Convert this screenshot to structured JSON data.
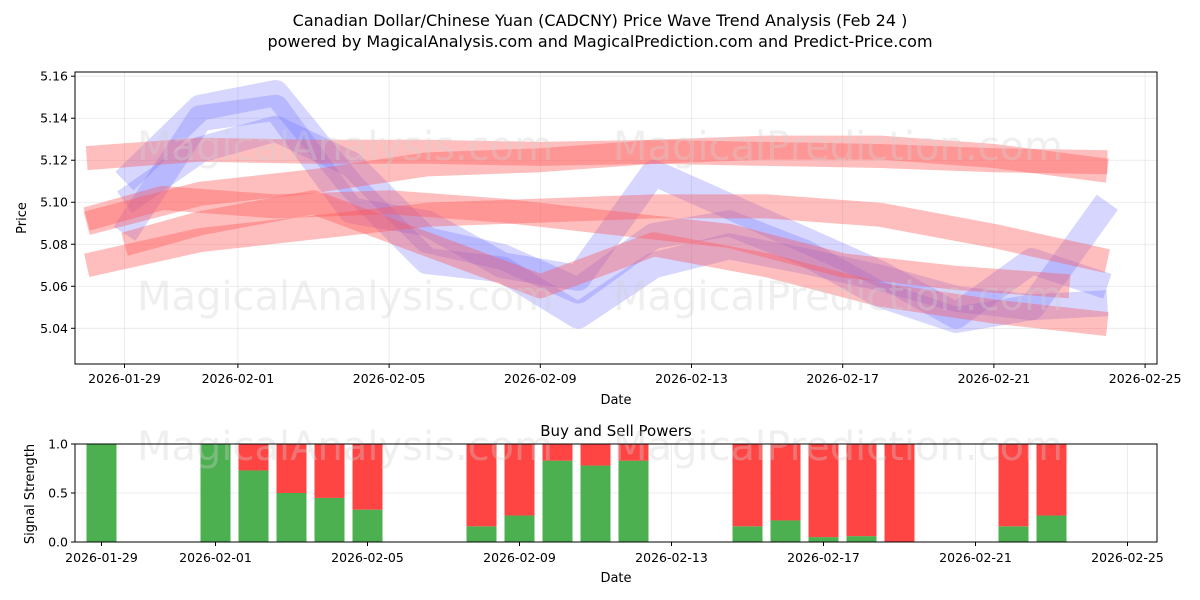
{
  "header": {
    "title_line1": "Canadian Dollar/Chinese Yuan (CADCNY) Price Wave Trend Analysis (Feb 24 )",
    "title_line2": "powered by MagicalAnalysis.com and MagicalPrediction.com and Predict-Price.com"
  },
  "watermarks": {
    "analysis": "MagicalAnalysis.com",
    "prediction": "MagicalPrediction.com"
  },
  "colors": {
    "blue_band": "#6a6aff",
    "red_band": "#ff5555",
    "buy": "#4caf50",
    "sell": "#ff4444"
  },
  "chart_data": [
    {
      "type": "line",
      "title": "",
      "xlabel": "Date",
      "ylabel": "Price",
      "grid": true,
      "x_ticks": [
        "2026-01-29",
        "2026-02-01",
        "2026-02-05",
        "2026-02-09",
        "2026-02-13",
        "2026-02-17",
        "2026-02-21",
        "2026-02-25"
      ],
      "y_ticks": [
        "5.04",
        "5.06",
        "5.08",
        "5.10",
        "5.12",
        "5.14",
        "5.16"
      ],
      "xlim": [
        "2026-01-27.8",
        "2026-02-25.0"
      ],
      "ylim": [
        5.023,
        5.162
      ],
      "series": [
        {
          "name": "blue-wave-1",
          "color": "blue",
          "x": [
            "2026-01-29",
            "2026-01-31",
            "2026-02-02",
            "2026-02-04",
            "2026-02-06",
            "2026-02-08",
            "2026-02-10",
            "2026-02-12",
            "2026-02-14",
            "2026-02-16",
            "2026-02-18",
            "2026-02-20",
            "2026-02-22",
            "2026-02-24"
          ],
          "y": [
            5.11,
            5.145,
            5.152,
            5.108,
            5.072,
            5.068,
            5.046,
            5.07,
            5.079,
            5.072,
            5.064,
            5.054,
            5.05,
            5.052
          ]
        },
        {
          "name": "blue-wave-2",
          "color": "blue",
          "x": [
            "2026-01-29",
            "2026-01-31",
            "2026-02-02",
            "2026-02-04",
            "2026-02-06",
            "2026-02-08",
            "2026-02-10",
            "2026-02-12",
            "2026-02-14",
            "2026-02-16",
            "2026-02-18",
            "2026-02-20",
            "2026-02-22",
            "2026-02-24"
          ],
          "y": [
            5.085,
            5.14,
            5.145,
            5.096,
            5.09,
            5.07,
            5.064,
            5.114,
            5.098,
            5.082,
            5.066,
            5.046,
            5.072,
            5.06
          ]
        },
        {
          "name": "blue-wave-3",
          "color": "blue",
          "x": [
            "2026-01-29",
            "2026-01-31",
            "2026-02-02",
            "2026-02-04",
            "2026-02-06",
            "2026-02-08",
            "2026-02-10",
            "2026-02-12",
            "2026-02-14",
            "2026-02-16",
            "2026-02-18",
            "2026-02-20",
            "2026-02-22",
            "2026-02-24"
          ],
          "y": [
            5.1,
            5.125,
            5.135,
            5.118,
            5.082,
            5.074,
            5.058,
            5.084,
            5.09,
            5.076,
            5.056,
            5.044,
            5.05,
            5.1
          ]
        },
        {
          "name": "red-wave-1",
          "color": "red",
          "x": [
            "2026-01-28",
            "2026-01-31",
            "2026-02-03",
            "2026-02-06",
            "2026-02-09",
            "2026-02-12",
            "2026-02-15",
            "2026-02-18",
            "2026-02-21",
            "2026-02-24"
          ],
          "y": [
            5.121,
            5.125,
            5.124,
            5.124,
            5.123,
            5.124,
            5.123,
            5.122,
            5.12,
            5.119
          ]
        },
        {
          "name": "red-wave-2",
          "color": "red",
          "x": [
            "2026-01-28",
            "2026-01-31",
            "2026-02-03",
            "2026-02-06",
            "2026-02-09",
            "2026-02-12",
            "2026-02-15",
            "2026-02-18",
            "2026-02-21",
            "2026-02-24"
          ],
          "y": [
            5.09,
            5.104,
            5.11,
            5.118,
            5.12,
            5.124,
            5.126,
            5.126,
            5.122,
            5.115
          ]
        },
        {
          "name": "red-wave-3",
          "color": "red",
          "x": [
            "2026-01-28",
            "2026-01-31",
            "2026-02-03",
            "2026-02-06",
            "2026-02-09",
            "2026-02-12",
            "2026-02-15",
            "2026-02-18",
            "2026-02-21",
            "2026-02-24"
          ],
          "y": [
            5.07,
            5.082,
            5.088,
            5.094,
            5.096,
            5.098,
            5.098,
            5.094,
            5.084,
            5.072
          ]
        },
        {
          "name": "red-wave-4",
          "color": "red",
          "x": [
            "2026-01-28",
            "2026-01-30",
            "2026-02-02",
            "2026-02-05",
            "2026-02-08",
            "2026-02-11",
            "2026-02-14",
            "2026-02-17",
            "2026-02-20",
            "2026-02-23"
          ],
          "y": [
            5.092,
            5.102,
            5.098,
            5.1,
            5.096,
            5.09,
            5.084,
            5.07,
            5.064,
            5.06
          ]
        },
        {
          "name": "red-wave-5",
          "color": "red",
          "x": [
            "2026-01-29",
            "2026-01-31",
            "2026-02-03",
            "2026-02-06",
            "2026-02-09",
            "2026-02-12",
            "2026-02-15",
            "2026-02-18",
            "2026-02-21",
            "2026-02-24"
          ],
          "y": [
            5.08,
            5.09,
            5.1,
            5.08,
            5.06,
            5.08,
            5.07,
            5.056,
            5.048,
            5.042
          ]
        }
      ]
    },
    {
      "type": "bar",
      "title": "Buy and Sell Powers",
      "xlabel": "Date",
      "ylabel": "Signal Strength",
      "grid": true,
      "x_ticks": [
        "2026-01-29",
        "2026-02-01",
        "2026-02-05",
        "2026-02-09",
        "2026-02-13",
        "2026-02-17",
        "2026-02-21",
        "2026-02-25"
      ],
      "y_ticks": [
        "0.0",
        "0.5",
        "1.0"
      ],
      "ylim": [
        0,
        1
      ],
      "categories": [
        "2026-01-29",
        "2026-02-01",
        "2026-02-02",
        "2026-02-03",
        "2026-02-04",
        "2026-02-05",
        "2026-02-08",
        "2026-02-09",
        "2026-02-10",
        "2026-02-11",
        "2026-02-12",
        "2026-02-15",
        "2026-02-16",
        "2026-02-17",
        "2026-02-18",
        "2026-02-19",
        "2026-02-22",
        "2026-02-23"
      ],
      "series": [
        {
          "name": "buy",
          "values": [
            1.0,
            1.0,
            0.73,
            0.5,
            0.45,
            0.33,
            0.16,
            0.27,
            0.83,
            0.78,
            0.83,
            0.16,
            0.22,
            0.05,
            0.06,
            0.0,
            0.16,
            0.27
          ]
        },
        {
          "name": "sell",
          "values": [
            0.0,
            0.0,
            0.27,
            0.5,
            0.55,
            0.67,
            0.84,
            0.73,
            0.17,
            0.22,
            0.17,
            0.84,
            0.78,
            0.95,
            0.94,
            1.0,
            0.84,
            0.73
          ]
        }
      ]
    }
  ]
}
